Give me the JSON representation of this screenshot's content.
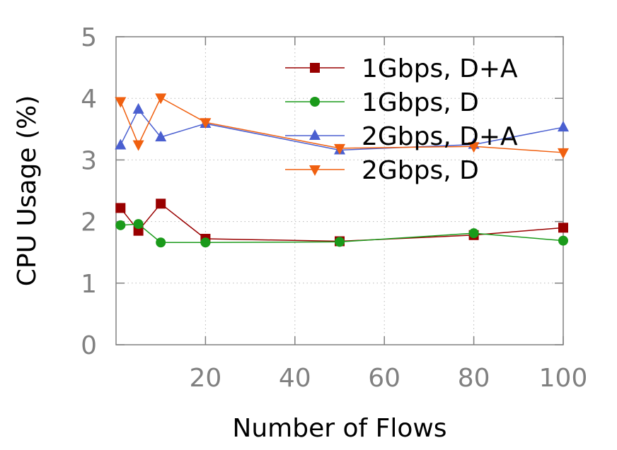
{
  "chart_data": {
    "type": "line",
    "title": "",
    "xlabel": "Number of Flows",
    "ylabel": "CPU Usage (%)",
    "xlim": [
      0,
      100
    ],
    "ylim": [
      0,
      5
    ],
    "xticks": [
      20,
      40,
      60,
      80,
      100
    ],
    "yticks": [
      0,
      1,
      2,
      3,
      4,
      5
    ],
    "grid": true,
    "legend_position": "top-right",
    "series": [
      {
        "name": "1Gbps, D+A",
        "color": "#990000",
        "marker": "square",
        "x": [
          1,
          5,
          10,
          20,
          50,
          80,
          100
        ],
        "values": [
          2.22,
          1.85,
          2.29,
          1.72,
          1.68,
          1.78,
          1.9
        ]
      },
      {
        "name": "1Gbps, D",
        "color": "#1a9a1a",
        "marker": "circle",
        "x": [
          1,
          5,
          10,
          20,
          50,
          80,
          100
        ],
        "values": [
          1.94,
          1.96,
          1.66,
          1.66,
          1.67,
          1.81,
          1.69
        ]
      },
      {
        "name": "2Gbps, D+A",
        "color": "#4a5fd0",
        "marker": "triangle-up",
        "x": [
          1,
          5,
          10,
          20,
          50,
          80,
          100
        ],
        "values": [
          3.24,
          3.82,
          3.37,
          3.59,
          3.16,
          3.25,
          3.53
        ]
      },
      {
        "name": "2Gbps, D",
        "color": "#f06010",
        "marker": "triangle-down",
        "x": [
          1,
          5,
          10,
          20,
          50,
          80,
          100
        ],
        "values": [
          3.95,
          3.25,
          4.01,
          3.61,
          3.19,
          3.22,
          3.12
        ]
      }
    ]
  }
}
